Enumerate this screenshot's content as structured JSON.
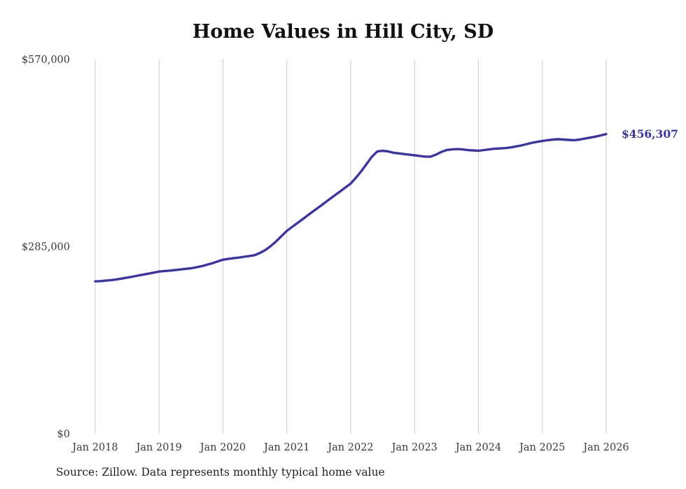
{
  "source_note": "Source: Zillow. Data represents monthly typical home value",
  "colors": {
    "line": "#3a34a8",
    "grid": "#cccccc",
    "axis_text": "#3a3a3a",
    "end_label": "#3a34a8"
  },
  "chart_data": {
    "type": "line",
    "title": "Home Values in Hill City, SD",
    "xlabel": "",
    "ylabel": "",
    "ylim": [
      0,
      570000
    ],
    "grid": "vertical",
    "legend": "none",
    "last_value_label": "$456,307",
    "y_ticks": [
      {
        "value": 0,
        "label": "$0"
      },
      {
        "value": 285000,
        "label": "$285,000"
      },
      {
        "value": 570000,
        "label": "$570,000"
      }
    ],
    "x_tick_labels": [
      "Jan 2018",
      "Jan 2019",
      "Jan 2020",
      "Jan 2021",
      "Jan 2022",
      "Jan 2023",
      "Jan 2024",
      "Jan 2025",
      "Jan 2026"
    ],
    "x": [
      "2018-01",
      "2018-02",
      "2018-03",
      "2018-04",
      "2018-05",
      "2018-06",
      "2018-07",
      "2018-08",
      "2018-09",
      "2018-10",
      "2018-11",
      "2018-12",
      "2019-01",
      "2019-02",
      "2019-03",
      "2019-04",
      "2019-05",
      "2019-06",
      "2019-07",
      "2019-08",
      "2019-09",
      "2019-10",
      "2019-11",
      "2019-12",
      "2020-01",
      "2020-02",
      "2020-03",
      "2020-04",
      "2020-05",
      "2020-06",
      "2020-07",
      "2020-08",
      "2020-09",
      "2020-10",
      "2020-11",
      "2020-12",
      "2021-01",
      "2021-02",
      "2021-03",
      "2021-04",
      "2021-05",
      "2021-06",
      "2021-07",
      "2021-08",
      "2021-09",
      "2021-10",
      "2021-11",
      "2021-12",
      "2022-01",
      "2022-02",
      "2022-03",
      "2022-04",
      "2022-05",
      "2022-06",
      "2022-07",
      "2022-08",
      "2022-09",
      "2022-10",
      "2022-11",
      "2022-12",
      "2023-01",
      "2023-02",
      "2023-03",
      "2023-04",
      "2023-05",
      "2023-06",
      "2023-07",
      "2023-08",
      "2023-09",
      "2023-10",
      "2023-11",
      "2023-12",
      "2024-01",
      "2024-02",
      "2024-03",
      "2024-04",
      "2024-05",
      "2024-06",
      "2024-07",
      "2024-08",
      "2024-09",
      "2024-10",
      "2024-11",
      "2024-12",
      "2025-01",
      "2025-02",
      "2025-03",
      "2025-04",
      "2025-05",
      "2025-06",
      "2025-07",
      "2025-08",
      "2025-09",
      "2025-10",
      "2025-11",
      "2025-12",
      "2026-01"
    ],
    "values": [
      232000,
      232500,
      233200,
      234000,
      235000,
      236300,
      237800,
      239200,
      240800,
      242300,
      243800,
      245400,
      247000,
      247800,
      248500,
      249300,
      250200,
      251100,
      252000,
      253500,
      255200,
      257400,
      259800,
      262400,
      265000,
      266200,
      267300,
      268300,
      269500,
      270700,
      272000,
      275500,
      280000,
      286000,
      293000,
      301000,
      309000,
      315000,
      321000,
      327000,
      333000,
      339000,
      345000,
      351000,
      357000,
      363000,
      369000,
      375000,
      381000,
      390000,
      400000,
      411000,
      422000,
      430000,
      431000,
      430000,
      428000,
      427000,
      426000,
      425000,
      424000,
      423000,
      422000,
      422000,
      425000,
      429000,
      432000,
      433000,
      433500,
      433000,
      432000,
      431500,
      431000,
      432000,
      433000,
      434000,
      434500,
      435000,
      436000,
      437500,
      439000,
      441000,
      443000,
      444500,
      446000,
      447000,
      448000,
      448500,
      448000,
      447500,
      447000,
      448000,
      449500,
      451000,
      452500,
      454400,
      456307
    ]
  }
}
